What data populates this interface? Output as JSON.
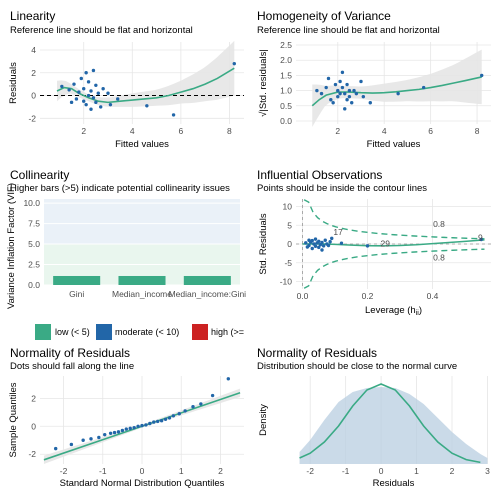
{
  "colors": {
    "green": "#3aaa85",
    "blue": "#2266a8",
    "red": "#cc2222",
    "band": "#e5e5e5",
    "grid": "#e6e6e6",
    "bg": "#ffffff"
  },
  "legend": {
    "items": [
      {
        "label": "low (< 5)",
        "color": "#3aaa85"
      },
      {
        "label": "moderate (< 10)",
        "color": "#2266a8"
      },
      {
        "label": "high (>= ",
        "color": "#cc2222"
      }
    ]
  },
  "chart_data": [
    {
      "id": "linearity",
      "type": "scatter",
      "title": "Linearity",
      "subtitle": "Reference line should be flat and horizontal",
      "xlabel": "Fitted values",
      "ylabel": "Residuals",
      "xlim": [
        0.2,
        8.6
      ],
      "ylim": [
        -2.5,
        4.7
      ],
      "xticks": [
        2,
        4,
        6,
        8
      ],
      "yticks": [
        -2,
        0,
        2,
        4
      ],
      "reference_line": 0,
      "points": [
        [
          1.1,
          0.8
        ],
        [
          1.4,
          0.5
        ],
        [
          1.6,
          1.0
        ],
        [
          1.7,
          -0.3
        ],
        [
          1.8,
          0.3
        ],
        [
          1.9,
          1.5
        ],
        [
          2.0,
          -0.5
        ],
        [
          2.0,
          0.6
        ],
        [
          2.1,
          2.0
        ],
        [
          2.1,
          -0.8
        ],
        [
          2.2,
          0.0
        ],
        [
          2.2,
          1.2
        ],
        [
          2.3,
          -1.2
        ],
        [
          2.3,
          0.4
        ],
        [
          2.4,
          2.2
        ],
        [
          2.4,
          -0.2
        ],
        [
          2.5,
          0.9
        ],
        [
          2.5,
          -0.6
        ],
        [
          2.6,
          0.2
        ],
        [
          2.7,
          -1.0
        ],
        [
          2.8,
          0.6
        ],
        [
          1.5,
          -0.6
        ],
        [
          3.0,
          0.2
        ],
        [
          3.1,
          -0.8
        ],
        [
          3.4,
          -0.3
        ],
        [
          4.6,
          -0.9
        ],
        [
          5.7,
          -1.7
        ],
        [
          8.2,
          2.8
        ]
      ],
      "smooth": [
        [
          0.9,
          0.4
        ],
        [
          1.2,
          0.7
        ],
        [
          1.5,
          0.6
        ],
        [
          1.8,
          0.2
        ],
        [
          2.2,
          -0.2
        ],
        [
          2.6,
          -0.5
        ],
        [
          3.0,
          -0.6
        ],
        [
          3.5,
          -0.5
        ],
        [
          4.0,
          -0.4
        ],
        [
          4.5,
          -0.3
        ],
        [
          5.0,
          -0.2
        ],
        [
          5.5,
          0.0
        ],
        [
          6.0,
          0.3
        ],
        [
          6.5,
          0.6
        ],
        [
          7.0,
          1.0
        ],
        [
          7.5,
          1.5
        ],
        [
          8.2,
          2.4
        ]
      ],
      "band_width": [
        [
          0.9,
          0.9
        ],
        [
          1.5,
          0.4
        ],
        [
          2.2,
          0.3
        ],
        [
          3.0,
          0.4
        ],
        [
          4.0,
          0.6
        ],
        [
          5.0,
          0.7
        ],
        [
          6.0,
          1.0
        ],
        [
          7.0,
          1.5
        ],
        [
          8.2,
          2.4
        ]
      ]
    },
    {
      "id": "homogeneity",
      "type": "scatter",
      "title": "Homogeneity of Variance",
      "subtitle": "Reference line should be flat and horizontal",
      "xlabel": "Fitted values",
      "ylabel": "√|Std. residuals|",
      "xlim": [
        0.2,
        8.6
      ],
      "ylim": [
        -0.1,
        2.6
      ],
      "xticks": [
        2,
        4,
        6,
        8
      ],
      "yticks": [
        0.0,
        0.5,
        1.0,
        1.5,
        2.0,
        2.5
      ],
      "ytick_labels": [
        "0.0",
        "0.5",
        "1.0",
        "1.5",
        "2.0",
        "2.5"
      ],
      "points": [
        [
          1.1,
          1.0
        ],
        [
          1.3,
          0.9
        ],
        [
          1.5,
          1.1
        ],
        [
          1.7,
          0.7
        ],
        [
          1.8,
          0.6
        ],
        [
          1.9,
          1.2
        ],
        [
          2.0,
          1.0
        ],
        [
          2.0,
          0.8
        ],
        [
          2.1,
          1.3
        ],
        [
          2.1,
          0.9
        ],
        [
          2.2,
          1.1
        ],
        [
          2.2,
          1.6
        ],
        [
          2.3,
          0.4
        ],
        [
          2.3,
          0.9
        ],
        [
          2.4,
          1.2
        ],
        [
          2.4,
          0.7
        ],
        [
          2.5,
          1.0
        ],
        [
          2.5,
          0.8
        ],
        [
          2.6,
          0.6
        ],
        [
          2.7,
          1.0
        ],
        [
          2.8,
          0.9
        ],
        [
          3.0,
          1.3
        ],
        [
          3.1,
          0.8
        ],
        [
          3.4,
          0.6
        ],
        [
          4.6,
          0.9
        ],
        [
          5.7,
          1.1
        ],
        [
          8.2,
          1.5
        ],
        [
          1.6,
          1.4
        ]
      ],
      "smooth": [
        [
          0.9,
          0.5
        ],
        [
          1.2,
          0.7
        ],
        [
          1.5,
          0.85
        ],
        [
          2.0,
          0.95
        ],
        [
          2.5,
          0.95
        ],
        [
          3.0,
          0.93
        ],
        [
          3.5,
          0.92
        ],
        [
          4.0,
          0.93
        ],
        [
          4.5,
          0.96
        ],
        [
          5.0,
          1.0
        ],
        [
          5.5,
          1.04
        ],
        [
          6.0,
          1.1
        ],
        [
          6.5,
          1.17
        ],
        [
          7.0,
          1.25
        ],
        [
          7.5,
          1.33
        ],
        [
          8.2,
          1.45
        ]
      ],
      "band_width": [
        [
          0.9,
          0.7
        ],
        [
          1.5,
          0.3
        ],
        [
          2.2,
          0.2
        ],
        [
          3.0,
          0.2
        ],
        [
          4.0,
          0.3
        ],
        [
          5.0,
          0.35
        ],
        [
          6.0,
          0.45
        ],
        [
          7.0,
          0.6
        ],
        [
          8.2,
          0.9
        ]
      ]
    },
    {
      "id": "collinearity",
      "type": "bar",
      "title": "Collinearity",
      "subtitle": "Higher bars (>5) indicate potential collinearity issues",
      "ylabel": "Variance Inflation Factor (VIF)",
      "categories": [
        "Gini",
        "Median_income",
        "Median_income:Gini"
      ],
      "values": [
        1.1,
        1.1,
        1.1
      ],
      "ylim": [
        0,
        10.5
      ],
      "yticks": [
        0,
        2.5,
        5,
        7.5,
        10
      ],
      "ytick_labels": [
        "0.0",
        "2.5",
        "5.0",
        "7.5",
        "10.0"
      ]
    },
    {
      "id": "influential",
      "type": "scatter",
      "title": "Influential Observations",
      "subtitle": "Points should be inside the contour lines",
      "xlabel": "Leverage (h",
      "xlabel_sub": "ii",
      "xlabel_close": ")",
      "ylabel": "Std. Residuals",
      "xlim": [
        -0.02,
        0.58
      ],
      "ylim": [
        -12,
        12
      ],
      "xticks": [
        0.0,
        0.2,
        0.4
      ],
      "xtick_labels": [
        "0.0",
        "0.2",
        "0.4"
      ],
      "yticks": [
        -10,
        -5,
        0,
        5,
        10
      ],
      "contour_label": "0.8",
      "labels": [
        {
          "text": "17",
          "x": 0.095,
          "y": 2.4
        },
        {
          "text": "29",
          "x": 0.24,
          "y": -0.6
        },
        {
          "text": "9",
          "x": 0.54,
          "y": 0.9
        }
      ],
      "points": [
        [
          0.01,
          0.3
        ],
        [
          0.015,
          -0.8
        ],
        [
          0.02,
          1.0
        ],
        [
          0.02,
          -0.4
        ],
        [
          0.025,
          0.5
        ],
        [
          0.03,
          -1.2
        ],
        [
          0.03,
          0.9
        ],
        [
          0.035,
          0.0
        ],
        [
          0.04,
          -0.6
        ],
        [
          0.04,
          1.3
        ],
        [
          0.045,
          0.3
        ],
        [
          0.05,
          -0.9
        ],
        [
          0.05,
          0.7
        ],
        [
          0.055,
          -0.2
        ],
        [
          0.06,
          0.4
        ],
        [
          0.065,
          -0.5
        ],
        [
          0.07,
          1.0
        ],
        [
          0.075,
          0.0
        ],
        [
          0.08,
          -0.4
        ],
        [
          0.085,
          0.6
        ],
        [
          0.09,
          1.5
        ],
        [
          0.06,
          -1.6
        ],
        [
          0.12,
          0.2
        ],
        [
          0.2,
          -0.5
        ],
        [
          0.55,
          1.2
        ]
      ],
      "smooth": [
        [
          0.0,
          0.0
        ],
        [
          0.05,
          0.05
        ],
        [
          0.1,
          -0.1
        ],
        [
          0.15,
          -0.3
        ],
        [
          0.2,
          -0.45
        ],
        [
          0.25,
          -0.5
        ],
        [
          0.3,
          -0.4
        ],
        [
          0.35,
          -0.2
        ],
        [
          0.4,
          0.1
        ],
        [
          0.45,
          0.4
        ],
        [
          0.5,
          0.7
        ],
        [
          0.56,
          1.1
        ]
      ]
    },
    {
      "id": "qq",
      "type": "scatter",
      "title": "Normality of Residuals",
      "subtitle": "Dots should fall along the line",
      "xlabel": "Standard Normal Distribution Quantiles",
      "ylabel": "Sample Quantiles",
      "xlim": [
        -2.6,
        2.6
      ],
      "ylim": [
        -2.7,
        3.6
      ],
      "xticks": [
        -2,
        -1,
        0,
        1,
        2
      ],
      "yticks": [
        -2,
        0,
        2
      ],
      "points": [
        [
          -2.2,
          -1.6
        ],
        [
          -1.8,
          -1.3
        ],
        [
          -1.5,
          -1.0
        ],
        [
          -1.3,
          -0.9
        ],
        [
          -1.1,
          -0.8
        ],
        [
          -0.95,
          -0.6
        ],
        [
          -0.8,
          -0.5
        ],
        [
          -0.7,
          -0.45
        ],
        [
          -0.6,
          -0.4
        ],
        [
          -0.5,
          -0.3
        ],
        [
          -0.4,
          -0.2
        ],
        [
          -0.3,
          -0.15
        ],
        [
          -0.2,
          -0.1
        ],
        [
          -0.1,
          0.0
        ],
        [
          0.0,
          0.05
        ],
        [
          0.1,
          0.1
        ],
        [
          0.2,
          0.2
        ],
        [
          0.3,
          0.3
        ],
        [
          0.4,
          0.35
        ],
        [
          0.5,
          0.4
        ],
        [
          0.6,
          0.5
        ],
        [
          0.7,
          0.6
        ],
        [
          0.8,
          0.75
        ],
        [
          0.95,
          0.9
        ],
        [
          1.1,
          1.1
        ],
        [
          1.3,
          1.4
        ],
        [
          1.5,
          1.6
        ],
        [
          1.8,
          2.2
        ],
        [
          2.2,
          3.4
        ]
      ],
      "line": [
        [
          -2.5,
          -2.4
        ],
        [
          2.5,
          2.4
        ]
      ],
      "band_width": [
        [
          -2.5,
          0.3
        ],
        [
          0,
          0.1
        ],
        [
          2.5,
          0.3
        ]
      ]
    },
    {
      "id": "density",
      "type": "area",
      "title": "Normality of Residuals",
      "subtitle": "Distribution should be close to the normal curve",
      "xlabel": "Residuals",
      "ylabel": "Density",
      "xlim": [
        -2.4,
        3.1
      ],
      "ylim": [
        0,
        0.44
      ],
      "xticks": [
        -2,
        -1,
        0,
        1,
        2,
        3
      ],
      "density": [
        [
          -2.3,
          0.06
        ],
        [
          -2.0,
          0.12
        ],
        [
          -1.6,
          0.22
        ],
        [
          -1.2,
          0.31
        ],
        [
          -0.8,
          0.36
        ],
        [
          -0.4,
          0.38
        ],
        [
          0.0,
          0.385
        ],
        [
          0.4,
          0.38
        ],
        [
          0.8,
          0.35
        ],
        [
          1.2,
          0.3
        ],
        [
          1.6,
          0.23
        ],
        [
          2.0,
          0.16
        ],
        [
          2.4,
          0.1
        ],
        [
          2.8,
          0.05
        ],
        [
          3.0,
          0.03
        ]
      ],
      "normal_curve": [
        [
          -2.3,
          0.03
        ],
        [
          -2.0,
          0.054
        ],
        [
          -1.6,
          0.11
        ],
        [
          -1.2,
          0.19
        ],
        [
          -0.8,
          0.29
        ],
        [
          -0.4,
          0.37
        ],
        [
          0.0,
          0.4
        ],
        [
          0.4,
          0.37
        ],
        [
          0.8,
          0.29
        ],
        [
          1.2,
          0.19
        ],
        [
          1.6,
          0.11
        ],
        [
          2.0,
          0.054
        ],
        [
          2.4,
          0.022
        ],
        [
          2.8,
          0.008
        ]
      ]
    }
  ]
}
